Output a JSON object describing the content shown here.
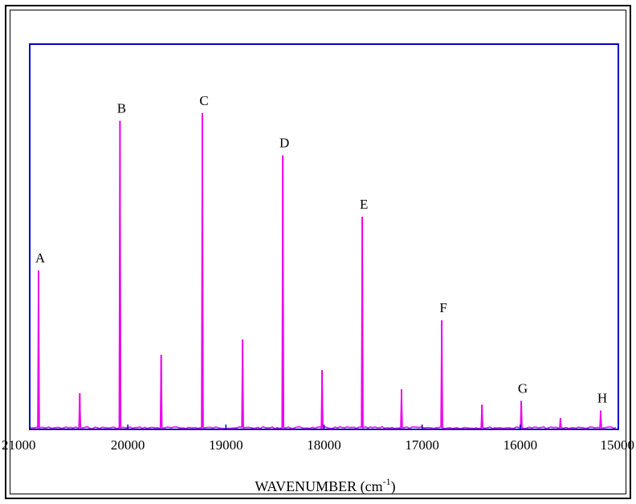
{
  "chart_data": {
    "type": "line",
    "title": "",
    "xlabel": "WAVENUMBER (cm",
    "xlabel_superscript": "-1",
    "xlabel_suffix": ")",
    "ylabel": "",
    "xlim": [
      21000,
      15000
    ],
    "ylim": [
      0,
      1.0
    ],
    "x_reversed": true,
    "grid": false,
    "legend": "none",
    "x_ticks": [
      21000,
      20000,
      19000,
      18000,
      17000,
      16000,
      15000
    ],
    "x_tick_labels": [
      "21000",
      "20000",
      "19000",
      "18000",
      "17000",
      "16000",
      "15000"
    ],
    "colors": {
      "line": "#ee00ee",
      "frame": "#0000cc"
    },
    "peaks": [
      {
        "x": 20910,
        "y": 0.41,
        "label": "A"
      },
      {
        "x": 20490,
        "y": 0.09,
        "label": ""
      },
      {
        "x": 20080,
        "y": 0.8,
        "label": "B"
      },
      {
        "x": 19660,
        "y": 0.19,
        "label": ""
      },
      {
        "x": 19240,
        "y": 0.82,
        "label": "C"
      },
      {
        "x": 18830,
        "y": 0.23,
        "label": ""
      },
      {
        "x": 18420,
        "y": 0.71,
        "label": "D"
      },
      {
        "x": 18020,
        "y": 0.15,
        "label": ""
      },
      {
        "x": 17610,
        "y": 0.55,
        "label": "E"
      },
      {
        "x": 17210,
        "y": 0.1,
        "label": ""
      },
      {
        "x": 16800,
        "y": 0.28,
        "label": "F"
      },
      {
        "x": 16390,
        "y": 0.06,
        "label": ""
      },
      {
        "x": 15990,
        "y": 0.07,
        "label": "G"
      },
      {
        "x": 15590,
        "y": 0.025,
        "label": ""
      },
      {
        "x": 15180,
        "y": 0.045,
        "label": "H"
      }
    ]
  }
}
